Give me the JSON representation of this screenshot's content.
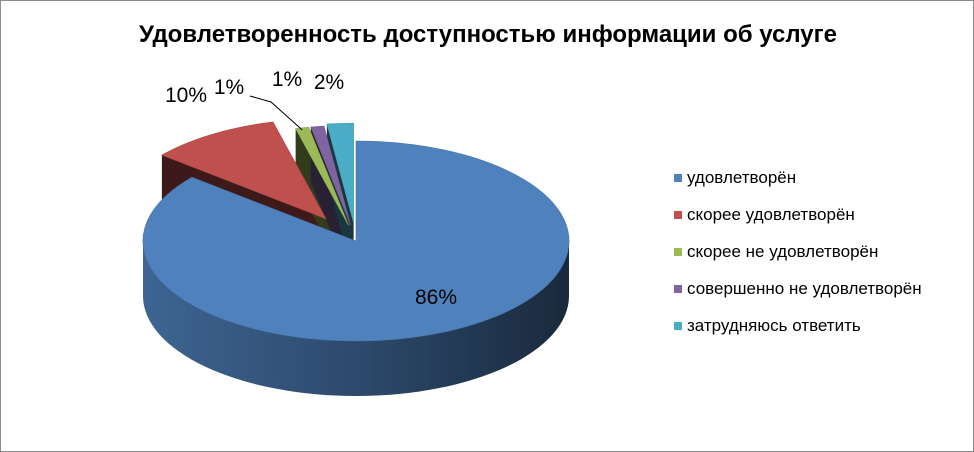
{
  "chart_data": {
    "type": "pie",
    "title": "Удовлетворенность доступностью информации об услуге",
    "categories": [
      "удовлетворён",
      "скорее удовлетворён",
      "скорее не удовлетворён",
      "совершенно не удовлетворён",
      "затрудняюсь ответить"
    ],
    "values": [
      86,
      10,
      1,
      1,
      2
    ],
    "labels": [
      "86%",
      "10%",
      "1%",
      "1%",
      "2%"
    ],
    "colors": [
      "#4f81bd",
      "#c0504d",
      "#9bbb59",
      "#8064a2",
      "#4bacc6"
    ],
    "legend_position": "right",
    "exploded": true,
    "style": "3d"
  }
}
